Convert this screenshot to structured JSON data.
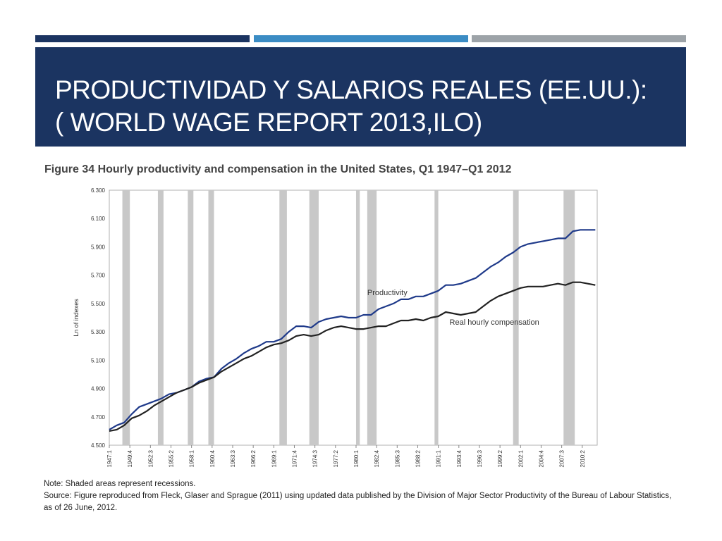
{
  "slide": {
    "title_line1": "PRODUCTIVIDAD Y SALARIOS REALES (EE.UU.):",
    "title_line2": "( WORLD WAGE REPORT 2013,ILO)",
    "colors": {
      "title_bar": "#1b3461",
      "stripe_1": "#1b3461",
      "stripe_2": "#3b8cc4",
      "stripe_3": "#9da3a8"
    }
  },
  "figure": {
    "title": "Figure 34  Hourly productivity and compensation in the United States, Q1 1947–Q1 2012",
    "note": "Note: Shaded areas represent recessions.",
    "source": "Source: Figure reproduced from Fleck, Glaser and Sprague (2011) using updated data published by the Division of Major Sector Productivity of the Bureau of Labour Statistics, as of 26 June, 2012."
  },
  "chart_data": {
    "type": "line",
    "ylabel": "Ln of indexes",
    "ylim": [
      4.5,
      6.3
    ],
    "xlim": [
      1947.0,
      2012.25
    ],
    "y_ticks": [
      "4.500",
      "4.700",
      "4.900",
      "5.100",
      "5.300",
      "5.500",
      "5.700",
      "5.900",
      "6.100",
      "6.300"
    ],
    "x_ticks": [
      "1947:1",
      "1949:4",
      "1952:3",
      "1955:2",
      "1958:1",
      "1960:4",
      "1963:3",
      "1966:2",
      "1969:1",
      "1971:4",
      "1974:3",
      "1977:2",
      "1980:1",
      "1982:4",
      "1985:3",
      "1988:2",
      "1991:1",
      "1993:4",
      "1996:3",
      "1999:2",
      "2002:1",
      "2004:4",
      "2007:3",
      "2010:2"
    ],
    "recession_color": "#c8c8c8",
    "recessions": [
      [
        1948.75,
        1949.75
      ],
      [
        1953.5,
        1954.25
      ],
      [
        1957.5,
        1958.25
      ],
      [
        1960.25,
        1961.0
      ],
      [
        1969.75,
        1970.75
      ],
      [
        1973.75,
        1975.0
      ],
      [
        1980.0,
        1980.5
      ],
      [
        1981.5,
        1982.75
      ],
      [
        1990.5,
        1991.0
      ],
      [
        2001.0,
        2001.75
      ],
      [
        2007.75,
        2009.25
      ]
    ],
    "series": [
      {
        "name": "Productivity",
        "color": "#1f3a8a",
        "x": [
          1947,
          1948,
          1949,
          1950,
          1951,
          1952,
          1953,
          1954,
          1955,
          1956,
          1957,
          1958,
          1959,
          1960,
          1961,
          1962,
          1963,
          1964,
          1965,
          1966,
          1967,
          1968,
          1969,
          1970,
          1971,
          1972,
          1973,
          1974,
          1975,
          1976,
          1977,
          1978,
          1979,
          1980,
          1981,
          1982,
          1983,
          1984,
          1985,
          1986,
          1987,
          1988,
          1989,
          1990,
          1991,
          1992,
          1993,
          1994,
          1995,
          1996,
          1997,
          1998,
          1999,
          2000,
          2001,
          2002,
          2003,
          2004,
          2005,
          2006,
          2007,
          2008,
          2009,
          2010,
          2011,
          2012
        ],
        "values": [
          4.61,
          4.64,
          4.66,
          4.72,
          4.77,
          4.79,
          4.81,
          4.83,
          4.86,
          4.87,
          4.89,
          4.91,
          4.95,
          4.97,
          4.98,
          5.04,
          5.08,
          5.11,
          5.15,
          5.18,
          5.2,
          5.23,
          5.23,
          5.25,
          5.3,
          5.34,
          5.34,
          5.33,
          5.37,
          5.39,
          5.4,
          5.41,
          5.4,
          5.4,
          5.42,
          5.42,
          5.46,
          5.48,
          5.5,
          5.53,
          5.53,
          5.55,
          5.55,
          5.57,
          5.59,
          5.63,
          5.63,
          5.64,
          5.66,
          5.68,
          5.72,
          5.76,
          5.79,
          5.83,
          5.86,
          5.9,
          5.92,
          5.93,
          5.94,
          5.95,
          5.96,
          5.96,
          6.01,
          6.02,
          6.02,
          6.02
        ]
      },
      {
        "name": "Real hourly compensation",
        "color": "#222222",
        "x": [
          1947,
          1948,
          1949,
          1950,
          1951,
          1952,
          1953,
          1954,
          1955,
          1956,
          1957,
          1958,
          1959,
          1960,
          1961,
          1962,
          1963,
          1964,
          1965,
          1966,
          1967,
          1968,
          1969,
          1970,
          1971,
          1972,
          1973,
          1974,
          1975,
          1976,
          1977,
          1978,
          1979,
          1980,
          1981,
          1982,
          1983,
          1984,
          1985,
          1986,
          1987,
          1988,
          1989,
          1990,
          1991,
          1992,
          1993,
          1994,
          1995,
          1996,
          1997,
          1998,
          1999,
          2000,
          2001,
          2002,
          2003,
          2004,
          2005,
          2006,
          2007,
          2008,
          2009,
          2010,
          2011,
          2012
        ],
        "values": [
          4.6,
          4.61,
          4.64,
          4.69,
          4.71,
          4.74,
          4.78,
          4.81,
          4.84,
          4.87,
          4.89,
          4.91,
          4.94,
          4.96,
          4.98,
          5.02,
          5.05,
          5.08,
          5.11,
          5.13,
          5.16,
          5.19,
          5.21,
          5.22,
          5.24,
          5.27,
          5.28,
          5.27,
          5.28,
          5.31,
          5.33,
          5.34,
          5.33,
          5.32,
          5.32,
          5.33,
          5.34,
          5.34,
          5.36,
          5.38,
          5.38,
          5.39,
          5.38,
          5.4,
          5.41,
          5.44,
          5.43,
          5.42,
          5.43,
          5.44,
          5.48,
          5.52,
          5.55,
          5.57,
          5.59,
          5.61,
          5.62,
          5.62,
          5.62,
          5.63,
          5.64,
          5.63,
          5.65,
          5.65,
          5.64,
          5.63
        ]
      }
    ],
    "annotations": [
      {
        "text": "Productivity",
        "x": 1981.5,
        "y": 5.56
      },
      {
        "text": "Real hourly compensation",
        "x": 1992.5,
        "y": 5.35
      }
    ]
  }
}
